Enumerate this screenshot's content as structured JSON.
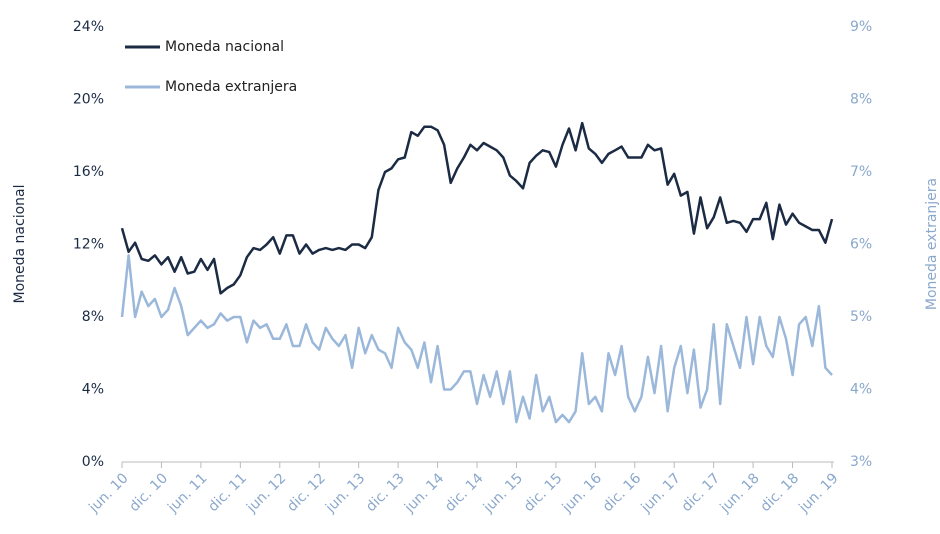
{
  "chart_data": {
    "type": "line",
    "x_label": "Moneda nacional",
    "y2_label": "Moneda extranjera",
    "categories": [
      "jun. 10",
      null,
      null,
      null,
      null,
      null,
      "dic. 10",
      null,
      null,
      null,
      null,
      null,
      "jun. 11",
      null,
      null,
      null,
      null,
      null,
      "dic. 11",
      null,
      null,
      null,
      null,
      null,
      "jun. 12",
      null,
      null,
      null,
      null,
      null,
      "dic. 12",
      null,
      null,
      null,
      null,
      null,
      "jun. 13",
      null,
      null,
      null,
      null,
      null,
      "dic. 13",
      null,
      null,
      null,
      null,
      null,
      "jun. 14",
      null,
      null,
      null,
      null,
      null,
      "dic. 14",
      null,
      null,
      null,
      null,
      null,
      "jun. 15",
      null,
      null,
      null,
      null,
      null,
      "dic. 15",
      null,
      null,
      null,
      null,
      null,
      "jun. 16",
      null,
      null,
      null,
      null,
      null,
      "dic. 16",
      null,
      null,
      null,
      null,
      null,
      "jun. 17",
      null,
      null,
      null,
      null,
      null,
      "dic. 17",
      null,
      null,
      null,
      null,
      null,
      "jun. 18",
      null,
      null,
      null,
      null,
      null,
      "dic. 18",
      null,
      null,
      null,
      null,
      null,
      "jun. 19"
    ],
    "series": [
      {
        "name": "Moneda nacional",
        "color": "#1c2b44",
        "values": [
          12.9,
          11.6,
          12.1,
          11.2,
          11.1,
          11.4,
          10.9,
          11.3,
          10.5,
          11.3,
          10.4,
          10.5,
          11.2,
          10.6,
          11.2,
          9.3,
          9.6,
          9.8,
          10.3,
          11.3,
          11.8,
          11.7,
          12.0,
          12.4,
          11.5,
          12.5,
          12.5,
          11.5,
          12.0,
          11.5,
          11.7,
          11.8,
          11.7,
          11.8,
          11.7,
          12.0,
          12.0,
          11.8,
          12.4,
          15.0,
          16.0,
          16.2,
          16.7,
          16.8,
          18.2,
          18.0,
          18.5,
          18.5,
          18.3,
          17.5,
          15.4,
          16.2,
          16.8,
          17.5,
          17.2,
          17.6,
          17.4,
          17.2,
          16.8,
          15.8,
          15.5,
          15.1,
          16.5,
          16.9,
          17.2,
          17.1,
          16.3,
          17.5,
          18.4,
          17.2,
          18.7,
          17.3,
          17.0,
          16.5,
          17.0,
          17.2,
          17.4,
          16.8,
          16.8,
          16.8,
          17.5,
          17.2,
          17.3,
          15.3,
          15.9,
          14.7,
          14.9,
          12.6,
          14.6,
          12.9,
          13.5,
          14.6,
          13.2,
          13.3,
          13.2,
          12.7,
          13.4,
          13.4,
          14.3,
          12.3,
          14.2,
          13.1,
          13.7,
          13.2,
          13.0,
          12.8,
          12.8,
          12.1,
          13.4
        ]
      },
      {
        "name": "Moneda extranjera",
        "color": "#9bb8db",
        "axis": "y2",
        "values": [
          5.0,
          5.85,
          5.0,
          5.35,
          5.15,
          5.25,
          5.0,
          5.1,
          5.4,
          5.15,
          4.75,
          4.85,
          4.95,
          4.85,
          4.9,
          5.05,
          4.95,
          5.0,
          5.0,
          4.65,
          4.95,
          4.85,
          4.9,
          4.7,
          4.7,
          4.9,
          4.6,
          4.6,
          4.9,
          4.65,
          4.55,
          4.85,
          4.7,
          4.6,
          4.75,
          4.3,
          4.85,
          4.5,
          4.75,
          4.55,
          4.5,
          4.3,
          4.85,
          4.65,
          4.55,
          4.3,
          4.65,
          4.1,
          4.6,
          4.0,
          4.0,
          4.1,
          4.25,
          4.25,
          3.8,
          4.2,
          3.9,
          4.25,
          3.8,
          4.25,
          3.55,
          3.9,
          3.6,
          4.2,
          3.7,
          3.9,
          3.55,
          3.65,
          3.55,
          3.7,
          4.5,
          3.8,
          3.9,
          3.7,
          4.5,
          4.2,
          4.6,
          3.9,
          3.7,
          3.9,
          4.45,
          3.95,
          4.6,
          3.7,
          4.3,
          4.6,
          3.95,
          4.55,
          3.75,
          4.0,
          4.9,
          3.8,
          4.9,
          4.6,
          4.3,
          5.0,
          4.35,
          5.0,
          4.6,
          4.45,
          5.0,
          4.7,
          4.2,
          4.9,
          5.0,
          4.6,
          5.15,
          4.3,
          4.2
        ]
      }
    ],
    "ylim": [
      0,
      24
    ],
    "yticks": [
      {
        "value": 0,
        "label": "0%"
      },
      {
        "value": 4,
        "label": "4%"
      },
      {
        "value": 8,
        "label": "8%"
      },
      {
        "value": 12,
        "label": "12%"
      },
      {
        "value": 16,
        "label": "16%"
      },
      {
        "value": 20,
        "label": "20%"
      },
      {
        "value": 24,
        "label": "24%"
      }
    ],
    "y2lim": [
      3,
      9
    ],
    "y2ticks": [
      {
        "value": 3,
        "label": "3%"
      },
      {
        "value": 4,
        "label": "4%"
      },
      {
        "value": 5,
        "label": "5%"
      },
      {
        "value": 6,
        "label": "6%"
      },
      {
        "value": 7,
        "label": "7%"
      },
      {
        "value": 8,
        "label": "8%"
      },
      {
        "value": 9,
        "label": "9%"
      }
    ],
    "legend": "top-left",
    "grid": false
  }
}
